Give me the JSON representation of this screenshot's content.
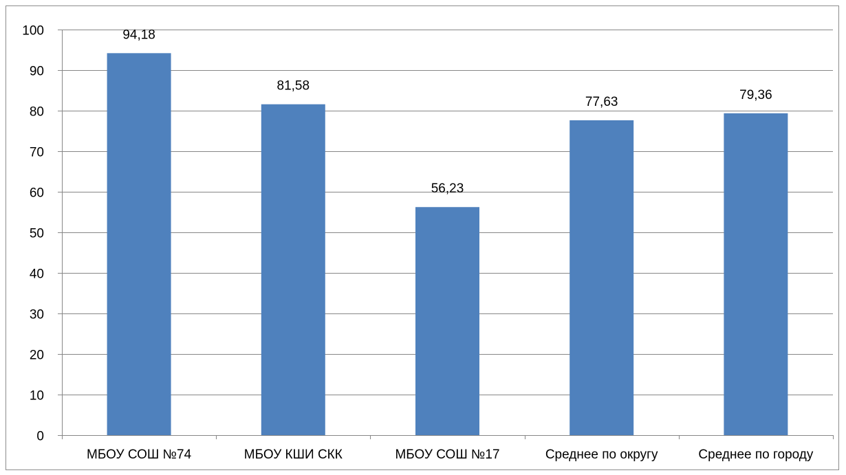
{
  "colors": {
    "bar": "#4f81bd",
    "grid": "#868686",
    "axis": "#868686",
    "frame": "#8c8c8c",
    "text": "#000000"
  },
  "chart_data": {
    "type": "bar",
    "categories": [
      "МБОУ СОШ №74",
      "МБОУ КШИ СКК",
      "МБОУ СОШ №17",
      "Среднее по округу",
      "Среднее по городу"
    ],
    "values": [
      94.18,
      81.58,
      56.23,
      77.63,
      79.36
    ],
    "data_labels": [
      "94,18",
      "81,58",
      "56,23",
      "77,63",
      "79,36"
    ],
    "yticks": [
      "0",
      "10",
      "20",
      "30",
      "40",
      "50",
      "60",
      "70",
      "80",
      "90",
      "100"
    ],
    "ylim": [
      0,
      100
    ],
    "grid": true,
    "legend": "none"
  }
}
